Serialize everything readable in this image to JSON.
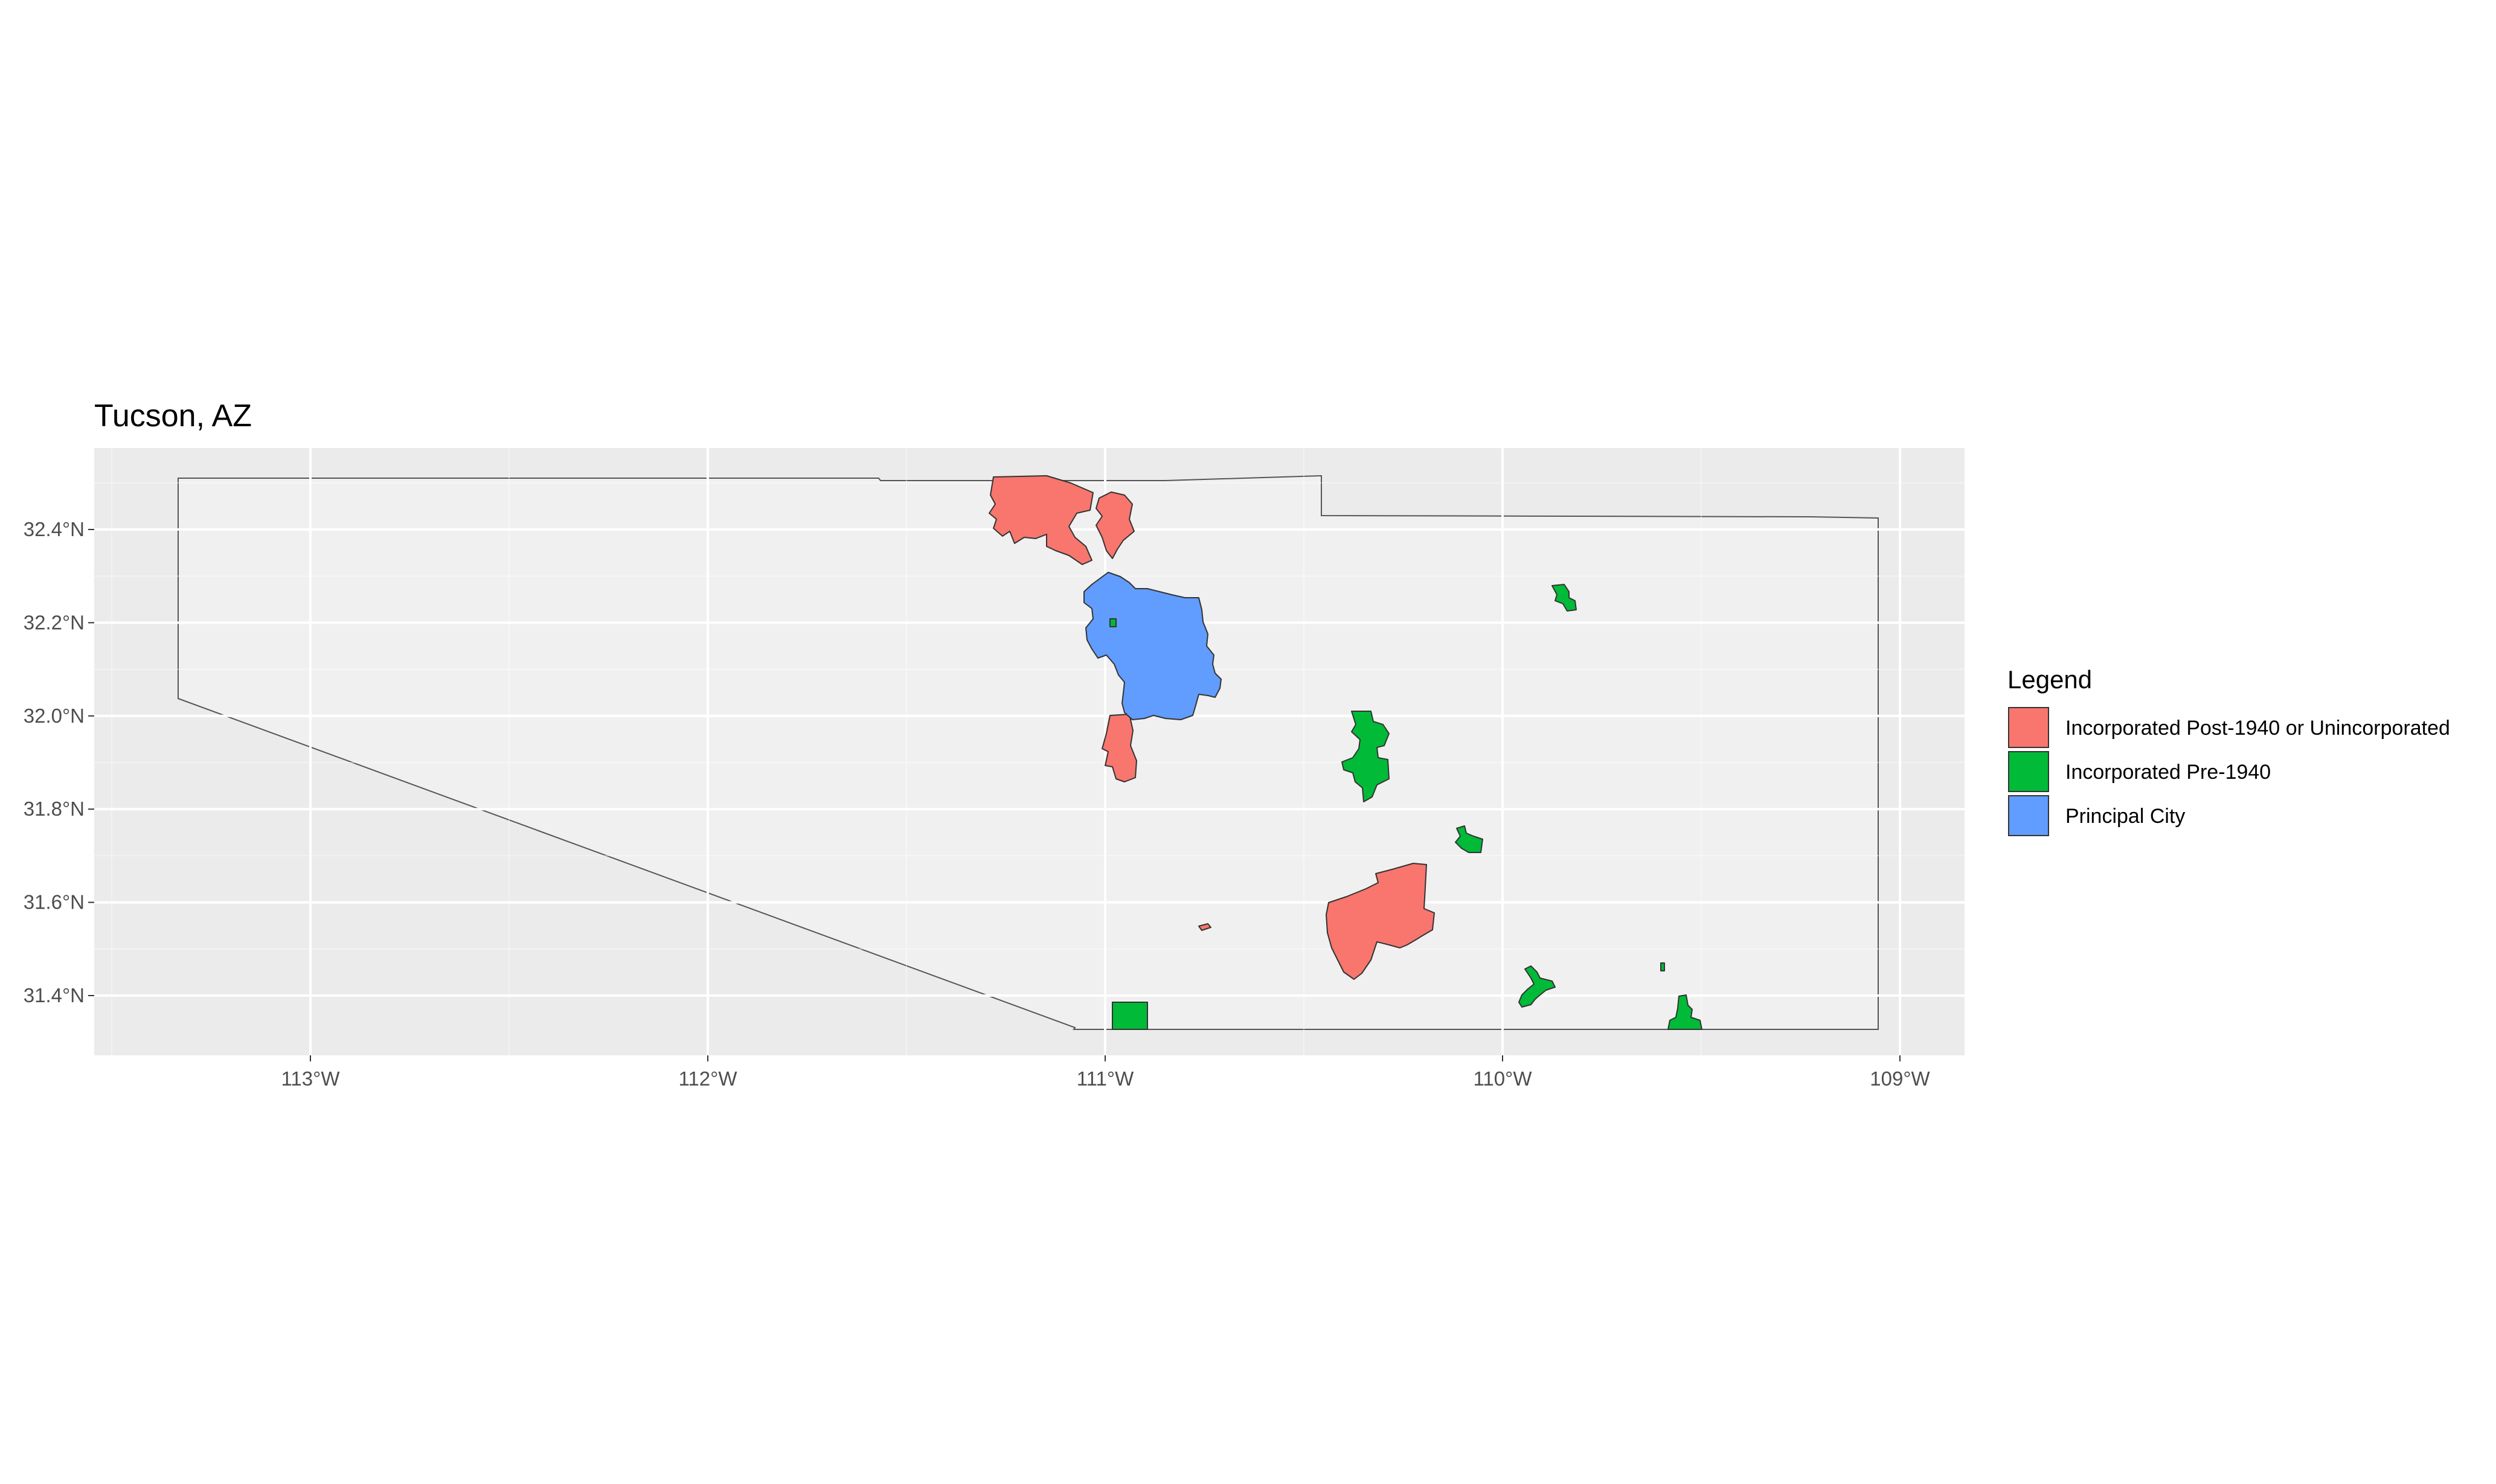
{
  "title": "Tucson, AZ",
  "map": {
    "x_axis": {
      "ticks": [
        {
          "value": -113,
          "label": "113°W"
        },
        {
          "value": -112,
          "label": "112°W"
        },
        {
          "value": -111,
          "label": "111°W"
        },
        {
          "value": -110,
          "label": "110°W"
        },
        {
          "value": -109,
          "label": "109°W"
        }
      ]
    },
    "y_axis": {
      "ticks": [
        {
          "value": 32.4,
          "label": "32.4°N"
        },
        {
          "value": 32.2,
          "label": "32.2°N"
        },
        {
          "value": 32.0,
          "label": "32.0°N"
        },
        {
          "value": 31.8,
          "label": "31.8°N"
        },
        {
          "value": 31.6,
          "label": "31.6°N"
        },
        {
          "value": 31.4,
          "label": "31.4°N"
        }
      ]
    },
    "colors": {
      "panel": "#ebebeb",
      "region_fill": "#f0f0f0",
      "grid": "#ffffff",
      "outline": "#555555"
    },
    "legend": {
      "title": "Legend",
      "items": [
        {
          "label": "Incorporated Post-1940 or Unincorporated",
          "color": "#f8766d"
        },
        {
          "label": "Incorporated Pre-1940",
          "color": "#00ba38"
        },
        {
          "label": "Principal City",
          "color": "#619cff"
        }
      ]
    }
  }
}
